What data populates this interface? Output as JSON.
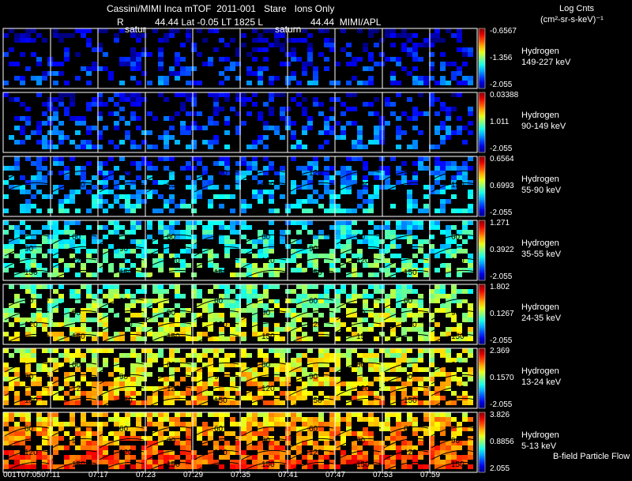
{
  "header": {
    "title": "Cassini/MIMI Inca mTOF  2011-001   Stare   Ions Only",
    "subtitle_left": "R",
    "subtitle_mid": "44.44 Lat -0.05 LT 1825 L",
    "subtitle_right": "44.44  MIMI/APL",
    "saturn_left": "satur",
    "saturn_right": "saturn"
  },
  "colorbar_title": {
    "line1": "Log Cnts",
    "line2": "(cm²-sr-s-keV)⁻¹"
  },
  "footer_note": "B-field Particle Flow",
  "chart_data": {
    "type": "heatmap",
    "x_ticks": [
      "001T07:05",
      "07:11",
      "07:17",
      "07:23",
      "07:29",
      "07:35",
      "07:41",
      "07:47",
      "07:53",
      "07:59"
    ],
    "panels": [
      {
        "species": "Hydrogen",
        "energy": "149-227 keV",
        "cb_max": "-0.6567",
        "cb_mid": "-1.356",
        "cb_min": "-2.055",
        "level": 0.15,
        "contours": []
      },
      {
        "species": "Hydrogen",
        "energy": "90-149 keV",
        "cb_max": "0.03388",
        "cb_mid": "1.011",
        "cb_min": "-2.055",
        "level": 0.2,
        "contours": []
      },
      {
        "species": "Hydrogen",
        "energy": "55-90 keV",
        "cb_max": "0.6564",
        "cb_mid": "0.6993",
        "cb_min": "-2.055",
        "level": 0.3,
        "contours": [
          "120",
          "150"
        ]
      },
      {
        "species": "Hydrogen",
        "energy": "35-55 keV",
        "cb_max": "1.271",
        "cb_mid": "0.3922",
        "cb_min": "-2.055",
        "level": 0.45,
        "contours": [
          "60",
          "90",
          "120",
          "150"
        ]
      },
      {
        "species": "Hydrogen",
        "energy": "24-35 keV",
        "cb_max": "1.802",
        "cb_mid": "0.1267",
        "cb_min": "-2.055",
        "level": 0.58,
        "contours": [
          "60",
          "90",
          "120",
          "150"
        ]
      },
      {
        "species": "Hydrogen",
        "energy": "13-24 keV",
        "cb_max": "2.369",
        "cb_mid": "0.1570",
        "cb_min": "-2.055",
        "level": 0.68,
        "contours": [
          "60",
          "90",
          "120",
          "150"
        ]
      },
      {
        "species": "Hydrogen",
        "energy": "5-13 keV",
        "cb_max": "3.826",
        "cb_mid": "0.8856",
        "cb_min": "2.055",
        "level": 0.78,
        "contours": [
          "60",
          "90",
          "120",
          "150"
        ]
      }
    ],
    "grid": true
  }
}
